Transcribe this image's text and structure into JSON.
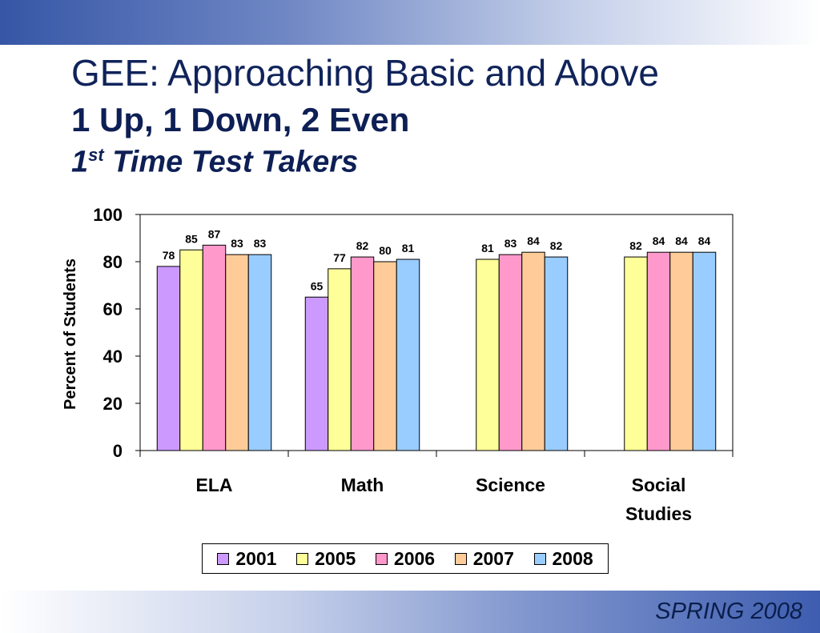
{
  "slide": {
    "title": "GEE: Approaching Basic and Above",
    "subtitle": "1 Up, 1 Down, 2 Even",
    "subtitle2_main": "1",
    "subtitle2_sup": "st",
    "subtitle2_rest": " Time Test Takers",
    "footer": "SPRING 2008"
  },
  "chart_data": {
    "type": "bar",
    "ylabel": "Percent of Students",
    "ylim": [
      0,
      100
    ],
    "yticks": [
      0,
      20,
      40,
      60,
      80,
      100
    ],
    "grid": false,
    "legend_position": "bottom",
    "categories": [
      "ELA",
      "Math",
      "Science",
      "Social Studies"
    ],
    "category_labels": [
      [
        "ELA"
      ],
      [
        "Math"
      ],
      [
        "Science"
      ],
      [
        "Social",
        "Studies"
      ]
    ],
    "series": [
      {
        "name": "2001",
        "color": "#cc99ff",
        "values": [
          78,
          65,
          null,
          null
        ]
      },
      {
        "name": "2005",
        "color": "#ffff99",
        "values": [
          85,
          77,
          81,
          82
        ]
      },
      {
        "name": "2006",
        "color": "#ff99cc",
        "values": [
          87,
          82,
          83,
          84
        ]
      },
      {
        "name": "2007",
        "color": "#ffcc99",
        "values": [
          83,
          80,
          84,
          84
        ]
      },
      {
        "name": "2008",
        "color": "#99ccff",
        "values": [
          83,
          81,
          82,
          84
        ]
      }
    ]
  }
}
